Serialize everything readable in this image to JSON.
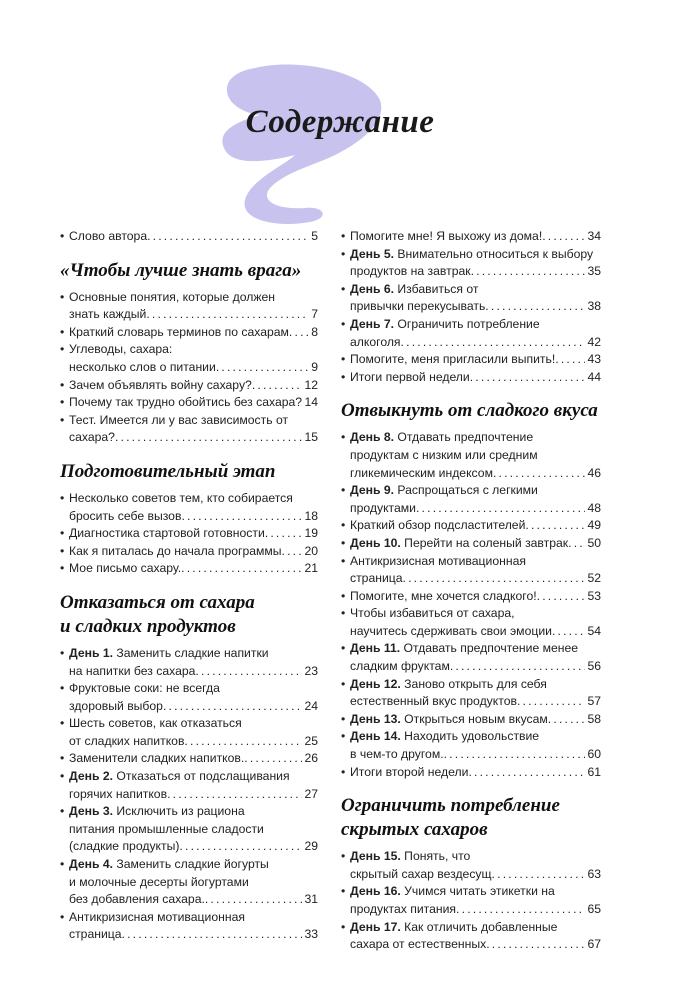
{
  "title": "Содержание",
  "accent_color": "#c8c2ee",
  "columns": [
    {
      "blocks": [
        {
          "heading": [],
          "entries": [
            {
              "bold": "",
              "lines": [
                "Слово автора"
              ],
              "page": "5"
            }
          ]
        },
        {
          "heading": [
            "«Чтобы лучше знать врага»"
          ],
          "entries": [
            {
              "bold": "",
              "lines": [
                "Основные понятия, которые должен",
                "знать каждый"
              ],
              "page": "7"
            },
            {
              "bold": "",
              "lines": [
                "Краткий словарь терминов по сахарам"
              ],
              "page": "8"
            },
            {
              "bold": "",
              "lines": [
                "Углеводы, сахара:",
                "несколько слов о питании"
              ],
              "page": "9"
            },
            {
              "bold": "",
              "lines": [
                "Зачем объявлять войну сахару?"
              ],
              "page": "12"
            },
            {
              "bold": "",
              "lines": [
                "Почему так трудно обойтись без сахара?"
              ],
              "page": "14"
            },
            {
              "bold": "",
              "lines": [
                "Тест. Имеется ли у вас зависимость от",
                "сахара?"
              ],
              "page": "15"
            }
          ]
        },
        {
          "heading": [
            "Подготовительный этап"
          ],
          "entries": [
            {
              "bold": "",
              "lines": [
                "Несколько советов тем, кто собирается",
                "бросить себе вызов"
              ],
              "page": "18"
            },
            {
              "bold": "",
              "lines": [
                "Диагностика стартовой готовности"
              ],
              "page": "19"
            },
            {
              "bold": "",
              "lines": [
                "Как я питалась до начала программы"
              ],
              "page": "20"
            },
            {
              "bold": "",
              "lines": [
                "Мое письмо сахару."
              ],
              "page": "21"
            }
          ]
        },
        {
          "heading": [
            "Отказаться от сахара",
            "и сладких продуктов"
          ],
          "entries": [
            {
              "bold": "День 1.",
              "lines": [
                " Заменить сладкие напитки",
                "на напитки без сахара"
              ],
              "page": "23"
            },
            {
              "bold": "",
              "lines": [
                "Фруктовые соки: не всегда",
                "здоровый выбор"
              ],
              "page": "24"
            },
            {
              "bold": "",
              "lines": [
                "Шесть советов, как отказаться",
                "от сладких напитков"
              ],
              "page": "25"
            },
            {
              "bold": "",
              "lines": [
                "Заменители сладких напитков."
              ],
              "page": "26"
            },
            {
              "bold": "День 2.",
              "lines": [
                " Отказаться от подслащивания",
                "горячих напитков"
              ],
              "page": "27"
            },
            {
              "bold": "День 3.",
              "lines": [
                " Исключить из рациона",
                "питания промышленные сладости",
                "(сладкие продукты)"
              ],
              "page": "29"
            },
            {
              "bold": "День 4.",
              "lines": [
                " Заменить сладкие йогурты",
                "и молочные десерты йогуртами",
                "без добавления сахара."
              ],
              "page": "31"
            },
            {
              "bold": "",
              "lines": [
                "Антикризисная мотивационная",
                "страница"
              ],
              "page": "33"
            }
          ]
        }
      ]
    },
    {
      "blocks": [
        {
          "heading": [],
          "entries": [
            {
              "bold": "",
              "lines": [
                "Помогите мне! Я выхожу из дома!"
              ],
              "page": "34"
            },
            {
              "bold": "День 5.",
              "lines": [
                " Внимательно относиться к выбору",
                "продуктов на завтрак"
              ],
              "page": "35"
            },
            {
              "bold": "День 6.",
              "lines": [
                " Избавиться от",
                "привычки перекусывать"
              ],
              "page": "38"
            },
            {
              "bold": "День 7.",
              "lines": [
                " Ограничить потребление",
                "алкоголя"
              ],
              "page": "42"
            },
            {
              "bold": "",
              "lines": [
                "Помогите, меня пригласили выпить!"
              ],
              "page": "43"
            },
            {
              "bold": "",
              "lines": [
                "Итоги первой недели"
              ],
              "page": "44"
            }
          ]
        },
        {
          "heading": [
            "Отвыкнуть от сладкого вкуса"
          ],
          "entries": [
            {
              "bold": "День 8.",
              "lines": [
                " Отдавать предпочтение",
                "продуктам с низким или средним",
                "гликемическим индексом"
              ],
              "page": "46"
            },
            {
              "bold": "День 9.",
              "lines": [
                " Распрощаться с легкими",
                "продуктами"
              ],
              "page": "48"
            },
            {
              "bold": "",
              "lines": [
                "Краткий обзор подсластителей"
              ],
              "page": "49"
            },
            {
              "bold": "День 10.",
              "lines": [
                " Перейти на соленый завтрак"
              ],
              "page": "50"
            },
            {
              "bold": "",
              "lines": [
                "Антикризисная мотивационная",
                "страница"
              ],
              "page": "52"
            },
            {
              "bold": "",
              "lines": [
                "Помогите, мне хочется сладкого!"
              ],
              "page": "53"
            },
            {
              "bold": "",
              "lines": [
                "Чтобы избавиться от сахара,",
                "научитесь сдерживать свои эмоции"
              ],
              "page": "54"
            },
            {
              "bold": "День 11.",
              "lines": [
                " Отдавать предпочтение менее",
                "сладким фруктам"
              ],
              "page": "56"
            },
            {
              "bold": "День 12.",
              "lines": [
                " Заново открыть для себя",
                "естественный вкус продуктов"
              ],
              "page": "57"
            },
            {
              "bold": "День 13.",
              "lines": [
                " Открыться новым вкусам"
              ],
              "page": "58"
            },
            {
              "bold": "День 14.",
              "lines": [
                " Находить удовольствие",
                "в чем-то другом."
              ],
              "page": "60"
            },
            {
              "bold": "",
              "lines": [
                "Итоги второй недели"
              ],
              "page": "61"
            }
          ]
        },
        {
          "heading": [
            "Ограничить потребление",
            "скрытых сахаров"
          ],
          "entries": [
            {
              "bold": "День 15.",
              "lines": [
                " Понять, что",
                "скрытый сахар вездесущ"
              ],
              "page": "63"
            },
            {
              "bold": "День 16.",
              "lines": [
                " Учимся читать этикетки на",
                "продуктах питания"
              ],
              "page": "65"
            },
            {
              "bold": "День 17.",
              "lines": [
                " Как отличить добавленные",
                "сахара от естественных"
              ],
              "page": "67"
            }
          ]
        }
      ]
    }
  ]
}
